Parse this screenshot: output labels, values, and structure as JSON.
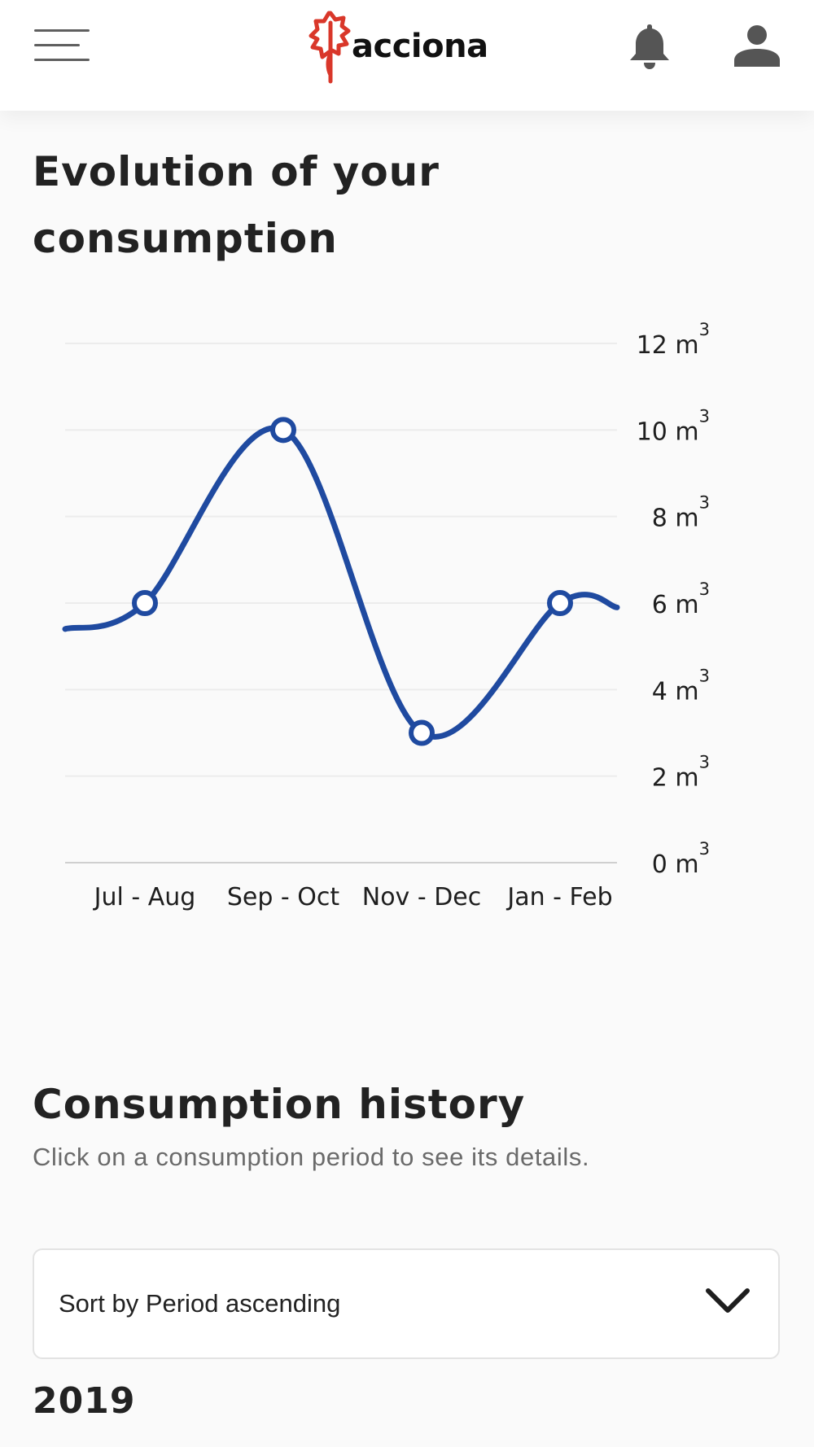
{
  "header": {
    "brand": "acciona",
    "brand_color": "#d9372a",
    "icons": {
      "menu": "hamburger-menu-icon",
      "notifications": "bell-icon",
      "account": "user-icon"
    }
  },
  "evolution": {
    "title": "Evolution of your consumption"
  },
  "chart_data": {
    "type": "line",
    "categories": [
      "Jul - Aug",
      "Sep - Oct",
      "Nov - Dec",
      "Jan - Feb"
    ],
    "values": [
      6,
      10,
      3,
      6
    ],
    "unit_label": "m",
    "unit_superscript": "3",
    "yticks": [
      0,
      2,
      4,
      6,
      8,
      10,
      12
    ],
    "ylim": [
      0,
      12
    ],
    "grid": true,
    "y_axis_side": "right",
    "line_color": "#1f4aa0",
    "smooth": true
  },
  "range_slider": {
    "handle_label": "||",
    "handles": [
      0,
      1
    ],
    "color": "#1f4aa0"
  },
  "history": {
    "title": "Consumption history",
    "subtitle": "Click on a consumption period to see its details.",
    "sort_label": "Sort by Period ascending",
    "year": "2019"
  }
}
